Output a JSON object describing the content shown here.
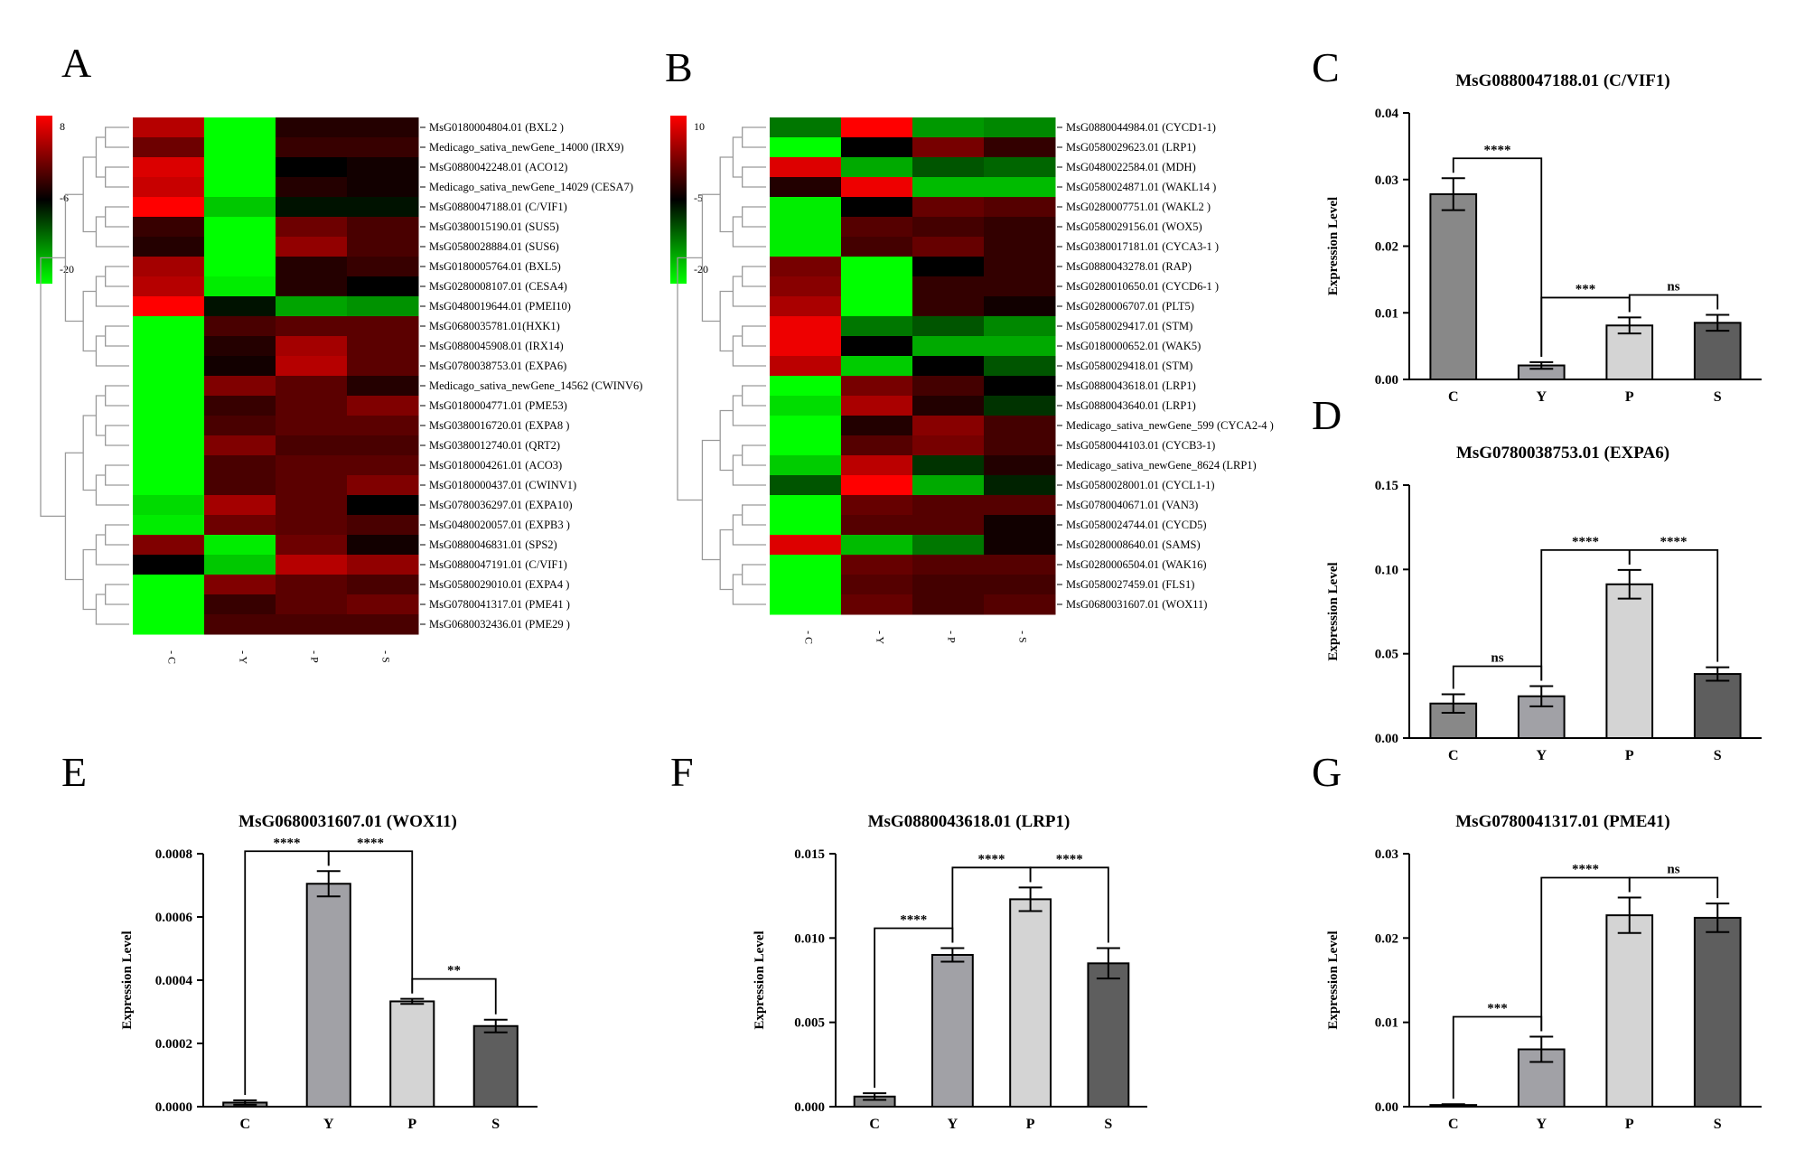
{
  "colors": {
    "bar_C": "#888888",
    "bar_Y": "#a1a1a6",
    "bar_P": "#d4d4d4",
    "bar_S": "#5e5e5e",
    "heat_low": "#00ff00",
    "heat_mid": "#000000",
    "heat_high": "#ff0000"
  },
  "chart_data": [
    {
      "panel": "A",
      "type": "heatmap",
      "columns": [
        "C",
        "Y",
        "P",
        "S"
      ],
      "column_labels": [
        "- C",
        "- Y",
        "- P",
        "- S"
      ],
      "scale": {
        "min": -20,
        "mid": -6,
        "max": 8,
        "tick_labels": [
          "8",
          "-6",
          "-20"
        ]
      },
      "rows": [
        {
          "label": "MsG0180004804.01 (BXL2 )",
          "values": [
            4,
            -20,
            -4,
            -4
          ]
        },
        {
          "label": "Medicago_sativa_newGene_14000 (IRX9)",
          "values": [
            0,
            -20,
            -3,
            -3
          ]
        },
        {
          "label": "MsG0880042248.01 (ACO12)",
          "values": [
            6,
            -20,
            -6,
            -5
          ]
        },
        {
          "label": "Medicago_sativa_newGene_14029 (CESA7)",
          "values": [
            5,
            -20,
            -4,
            -5
          ]
        },
        {
          "label": "MsG0880047188.01 (C/VIF1)",
          "values": [
            8,
            -17,
            -7,
            -7
          ]
        },
        {
          "label": "MsG0380015190.01 (SUS5)",
          "values": [
            -3,
            -20,
            0,
            -2
          ]
        },
        {
          "label": "MsG0580028884.01 (SUS6)",
          "values": [
            -4,
            -20,
            2,
            -2
          ]
        },
        {
          "label": "MsG0180005764.01 (BXL5)",
          "values": [
            3,
            -20,
            -4,
            -3
          ]
        },
        {
          "label": "MsG0280008107.01 (CESA4)",
          "values": [
            4,
            -19,
            -4,
            -6
          ]
        },
        {
          "label": "MsG0480019644.01 (PMEI10)",
          "values": [
            8,
            -7,
            -15,
            -14
          ]
        },
        {
          "label": "MsG0680035781.01(HXK1)",
          "values": [
            -20,
            -2,
            -1,
            -1
          ]
        },
        {
          "label": "MsG0880045908.01 (IRX14)",
          "values": [
            -20,
            -4,
            3,
            -1
          ]
        },
        {
          "label": "MsG0780038753.01 (EXPA6)",
          "values": [
            -20,
            -5,
            4,
            -1
          ]
        },
        {
          "label": "Medicago_sativa_newGene_14562 (CWINV6)",
          "values": [
            -20,
            1,
            -1,
            -4
          ]
        },
        {
          "label": "MsG0180004771.01 (PME53)",
          "values": [
            -20,
            -3,
            -1,
            1
          ]
        },
        {
          "label": "MsG0380016720.01 (EXPA8 )",
          "values": [
            -20,
            -2,
            -1,
            -1
          ]
        },
        {
          "label": "MsG0380012740.01 (QRT2)",
          "values": [
            -20,
            1,
            -2,
            -2
          ]
        },
        {
          "label": "MsG0180004261.01 (ACO3)",
          "values": [
            -20,
            -2,
            -1,
            -1
          ]
        },
        {
          "label": "MsG0180000437.01 (CWINV1)",
          "values": [
            -20,
            -2,
            -1,
            1
          ]
        },
        {
          "label": "MsG0780036297.01 (EXPA10)",
          "values": [
            -18,
            3,
            -1,
            -6
          ]
        },
        {
          "label": "MsG0480020057.01 (EXPB3 )",
          "values": [
            -19,
            0,
            -1,
            -2
          ]
        },
        {
          "label": "MsG0880046831.01 (SPS2)",
          "values": [
            1,
            -19,
            0,
            -5
          ]
        },
        {
          "label": "MsG0880047191.01 (C/VIF1)",
          "values": [
            -6,
            -17,
            4,
            2
          ]
        },
        {
          "label": "MsG0580029010.01 (EXPA4 )",
          "values": [
            -20,
            1,
            -1,
            -2
          ]
        },
        {
          "label": "MsG0780041317.01 (PME41 )",
          "values": [
            -20,
            -3,
            -1,
            0
          ]
        },
        {
          "label": "MsG0680032436.01 (PME29 )",
          "values": [
            -20,
            -2,
            -2,
            -2
          ]
        }
      ]
    },
    {
      "panel": "B",
      "type": "heatmap",
      "columns": [
        "C",
        "Y",
        "P",
        "S"
      ],
      "column_labels": [
        "- C",
        "- Y",
        "- P",
        "- S"
      ],
      "scale": {
        "min": -20,
        "mid": -5,
        "max": 10,
        "tick_labels": [
          "10",
          "-5",
          "-20"
        ]
      },
      "rows": [
        {
          "label": "MsG0880044984.01 (CYCD1-1)",
          "values": [
            -12,
            10,
            -14,
            -13
          ]
        },
        {
          "label": "MsG0580029623.01 (LRP1)",
          "values": [
            -20,
            -5,
            2,
            -2
          ]
        },
        {
          "label": "MsG0480022584.01 (MDH)",
          "values": [
            8,
            -15,
            -10,
            -11
          ]
        },
        {
          "label": "MsG0580024871.01 (WAKL14 )",
          "values": [
            -3,
            9,
            -16,
            -16
          ]
        },
        {
          "label": "MsG0280007751.01 (WAKL2 )",
          "values": [
            -19,
            -5,
            1,
            0
          ]
        },
        {
          "label": "MsG0580029156.01 (WOX5)",
          "values": [
            -19,
            0,
            -1,
            -2
          ]
        },
        {
          "label": "MsG0380017181.01 (CYCA3-1 )",
          "values": [
            -19,
            -1,
            1,
            -2
          ]
        },
        {
          "label": "MsG0880043278.01 (RAP)",
          "values": [
            2,
            -20,
            -5,
            -2
          ]
        },
        {
          "label": "MsG0280010650.01 (CYCD6-1 )",
          "values": [
            3,
            -20,
            -2,
            -2
          ]
        },
        {
          "label": "MsG0280006707.01 (PLT5)",
          "values": [
            5,
            -20,
            -2,
            -4
          ]
        },
        {
          "label": "MsG0580029417.01 (STM)",
          "values": [
            9,
            -12,
            -10,
            -13
          ]
        },
        {
          "label": "MsG0180000652.01 (WAK5)",
          "values": [
            9,
            -5,
            -15,
            -15
          ]
        },
        {
          "label": "MsG0580029418.01 (STM)",
          "values": [
            6,
            -17,
            -5,
            -10
          ]
        },
        {
          "label": "MsG0880043618.01 (LRP1)",
          "values": [
            -20,
            2,
            -1,
            -5
          ]
        },
        {
          "label": "MsG0880043640.01 (LRP1)",
          "values": [
            -18,
            5,
            -3,
            -8
          ]
        },
        {
          "label": "Medicago_sativa_newGene_599 (CYCA2-4 )",
          "values": [
            -20,
            -3,
            3,
            -1
          ]
        },
        {
          "label": "MsG0580044103.01 (CYCB3-1)",
          "values": [
            -20,
            0,
            2,
            -1
          ]
        },
        {
          "label": "Medicago_sativa_newGene_8624 (LRP1)",
          "values": [
            -17,
            6,
            -8,
            -3
          ]
        },
        {
          "label": "MsG0580028001.01 (CYCL1-1)",
          "values": [
            -10,
            10,
            -15,
            -7
          ]
        },
        {
          "label": "MsG0780040671.01 (VAN3)",
          "values": [
            -20,
            1,
            0,
            0
          ]
        },
        {
          "label": "MsG0580024744.01 (CYCD5)",
          "values": [
            -20,
            0,
            0,
            -4
          ]
        },
        {
          "label": "MsG0280008640.01 (SAMS)",
          "values": [
            8,
            -16,
            -12,
            -4
          ]
        },
        {
          "label": "MsG0280006504.01 (WAK16)",
          "values": [
            -20,
            1,
            0,
            0
          ]
        },
        {
          "label": "MsG0580027459.01 (FLS1)",
          "values": [
            -20,
            0,
            -1,
            -1
          ]
        },
        {
          "label": "MsG0680031607.01 (WOX11)",
          "values": [
            -20,
            1,
            -1,
            0
          ]
        }
      ]
    },
    {
      "panel": "C",
      "type": "bar",
      "title": "MsG0880047188.01 (C/VIF1)",
      "ylabel": "Expression Level",
      "categories": [
        "C",
        "Y",
        "P",
        "S"
      ],
      "values": [
        0.0278,
        0.0021,
        0.0081,
        0.0085
      ],
      "errors": [
        0.0024,
        0.0005,
        0.0012,
        0.0012
      ],
      "ylim": [
        0,
        0.04
      ],
      "yticks": [
        0,
        0.01,
        0.02,
        0.03,
        0.04
      ],
      "ytick_labels": [
        "0.00",
        "0.01",
        "0.02",
        "0.03",
        "0.04"
      ],
      "significance": [
        {
          "from": 0,
          "to": 1,
          "label": "****"
        },
        {
          "from": 1,
          "to": 2,
          "label": "***"
        },
        {
          "from": 2,
          "to": 3,
          "label": "ns"
        }
      ]
    },
    {
      "panel": "D",
      "type": "bar",
      "title": "MsG0780038753.01 (EXPA6)",
      "ylabel": "Expression Level",
      "categories": [
        "C",
        "Y",
        "P",
        "S"
      ],
      "values": [
        0.0205,
        0.0248,
        0.0912,
        0.038
      ],
      "errors": [
        0.0055,
        0.006,
        0.0085,
        0.004
      ],
      "ylim": [
        0,
        0.15
      ],
      "yticks": [
        0,
        0.05,
        0.1,
        0.15
      ],
      "ytick_labels": [
        "0.00",
        "0.05",
        "0.10",
        "0.15"
      ],
      "significance": [
        {
          "from": 0,
          "to": 1,
          "label": "ns"
        },
        {
          "from": 1,
          "to": 2,
          "label": "****"
        },
        {
          "from": 2,
          "to": 3,
          "label": "****"
        }
      ]
    },
    {
      "panel": "E",
      "type": "bar",
      "title": "MsG0680031607.01 (WOX11)",
      "ylabel": "Expression Level",
      "categories": [
        "C",
        "Y",
        "P",
        "S"
      ],
      "values": [
        1.3e-05,
        0.000705,
        0.000333,
        0.000255
      ],
      "errors": [
        7e-06,
        4e-05,
        8e-06,
        2e-05
      ],
      "ylim": [
        0,
        0.0008
      ],
      "yticks": [
        0,
        0.0002,
        0.0004,
        0.0006,
        0.0008
      ],
      "ytick_labels": [
        "0.0000",
        "0.0002",
        "0.0004",
        "0.0006",
        "0.0008"
      ],
      "significance": [
        {
          "from": 0,
          "to": 1,
          "label": "****"
        },
        {
          "from": 1,
          "to": 2,
          "label": "****"
        },
        {
          "from": 2,
          "to": 3,
          "label": "**"
        }
      ]
    },
    {
      "panel": "F",
      "type": "bar",
      "title": "MsG0880043618.01 (LRP1)",
      "ylabel": "Expression Level",
      "categories": [
        "C",
        "Y",
        "P",
        "S"
      ],
      "values": [
        0.0006,
        0.009,
        0.0123,
        0.0085
      ],
      "errors": [
        0.0002,
        0.0004,
        0.0007,
        0.0009
      ],
      "ylim": [
        0,
        0.015
      ],
      "yticks": [
        0,
        0.005,
        0.01,
        0.015
      ],
      "ytick_labels": [
        "0.000",
        "0.005",
        "0.010",
        "0.015"
      ],
      "significance": [
        {
          "from": 0,
          "to": 1,
          "label": "****"
        },
        {
          "from": 1,
          "to": 2,
          "label": "****"
        },
        {
          "from": 2,
          "to": 3,
          "label": "****"
        }
      ]
    },
    {
      "panel": "G",
      "type": "bar",
      "title": "MsG0780041317.01 (PME41)",
      "ylabel": "Expression Level",
      "categories": [
        "C",
        "Y",
        "P",
        "S"
      ],
      "values": [
        0.0002,
        0.0068,
        0.0227,
        0.0224
      ],
      "errors": [
        0.0001,
        0.0015,
        0.0021,
        0.0017
      ],
      "ylim": [
        0,
        0.03
      ],
      "yticks": [
        0,
        0.01,
        0.02,
        0.03
      ],
      "ytick_labels": [
        "0.00",
        "0.01",
        "0.02",
        "0.03"
      ],
      "significance": [
        {
          "from": 0,
          "to": 1,
          "label": "***"
        },
        {
          "from": 1,
          "to": 2,
          "label": "****"
        },
        {
          "from": 2,
          "to": 3,
          "label": "ns"
        }
      ]
    }
  ]
}
